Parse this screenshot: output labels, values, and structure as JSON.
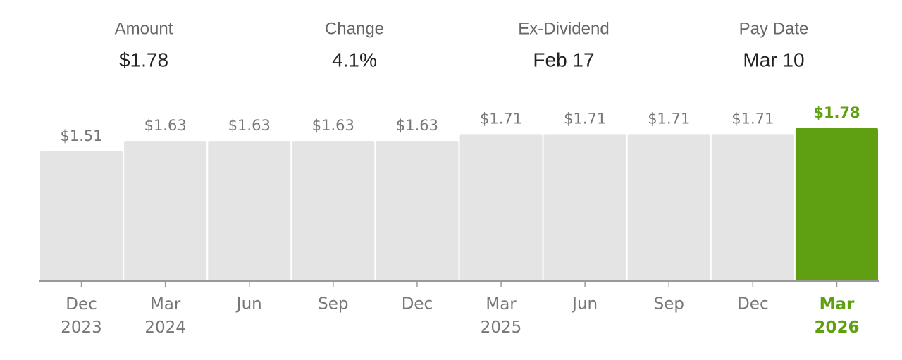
{
  "stats": [
    {
      "label": "Amount",
      "value": "$1.78"
    },
    {
      "label": "Change",
      "value": "4.1%"
    },
    {
      "label": "Ex-Dividend",
      "value": "Feb 17"
    },
    {
      "label": "Pay Date",
      "value": "Mar 10"
    }
  ],
  "chart_data": {
    "type": "bar",
    "categories": [
      "Dec\n2023",
      "Mar\n2024",
      "Jun",
      "Sep",
      "Dec",
      "Mar\n2025",
      "Jun",
      "Sep",
      "Dec",
      "Mar\n2026"
    ],
    "values": [
      1.51,
      1.63,
      1.63,
      1.63,
      1.63,
      1.71,
      1.71,
      1.71,
      1.71,
      1.78
    ],
    "value_labels": [
      "$1.51",
      "$1.63",
      "$1.63",
      "$1.63",
      "$1.63",
      "$1.71",
      "$1.71",
      "$1.71",
      "$1.71",
      "$1.78"
    ],
    "color": "#e4e4e4",
    "colors": [
      "#e4e4e4",
      "#e4e4e4",
      "#e4e4e4",
      "#e4e4e4",
      "#e4e4e4",
      "#e4e4e4",
      "#e4e4e4",
      "#e4e4e4",
      "#e4e4e4",
      "#5f9f12"
    ],
    "ylim": [
      0,
      2
    ]
  }
}
